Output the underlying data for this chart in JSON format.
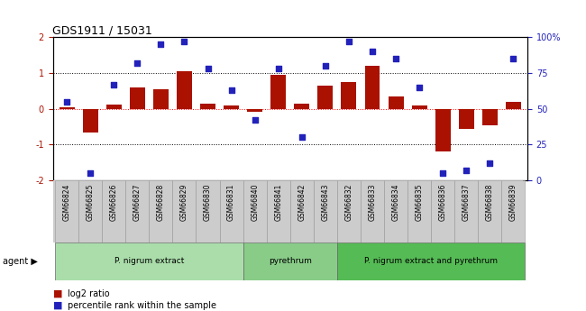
{
  "title": "GDS1911 / 15031",
  "samples": [
    "GSM66824",
    "GSM66825",
    "GSM66826",
    "GSM66827",
    "GSM66828",
    "GSM66829",
    "GSM66830",
    "GSM66831",
    "GSM66840",
    "GSM66841",
    "GSM66842",
    "GSM66843",
    "GSM66832",
    "GSM66833",
    "GSM66834",
    "GSM66835",
    "GSM66836",
    "GSM66837",
    "GSM66838",
    "GSM66839"
  ],
  "log2_ratio": [
    0.05,
    -0.65,
    0.12,
    0.6,
    0.55,
    1.05,
    0.15,
    0.1,
    -0.08,
    0.95,
    0.15,
    0.65,
    0.75,
    1.2,
    0.35,
    0.1,
    -1.2,
    -0.55,
    -0.45,
    0.2
  ],
  "pct_rank": [
    55,
    5,
    67,
    82,
    95,
    97,
    78,
    63,
    42,
    78,
    30,
    80,
    97,
    90,
    85,
    65,
    5,
    7,
    12,
    85
  ],
  "groups": [
    {
      "label": "P. nigrum extract",
      "start": 0,
      "end": 7,
      "color": "#aaddaa"
    },
    {
      "label": "pyrethrum",
      "start": 8,
      "end": 11,
      "color": "#88cc88"
    },
    {
      "label": "P. nigrum extract and pyrethrum",
      "start": 12,
      "end": 19,
      "color": "#55bb55"
    }
  ],
  "bar_color": "#aa1100",
  "dot_color": "#2222bb",
  "ylim_left": [
    -2,
    2
  ],
  "ylim_right": [
    0,
    100
  ],
  "yticks_left": [
    -2,
    -1,
    0,
    1,
    2
  ],
  "yticks_right": [
    0,
    25,
    50,
    75,
    100
  ],
  "yticklabels_right": [
    "0",
    "25",
    "50",
    "75",
    "100%"
  ],
  "background_color": "#ffffff",
  "plot_bg": "#ffffff",
  "ticklabel_bg": "#cccccc"
}
